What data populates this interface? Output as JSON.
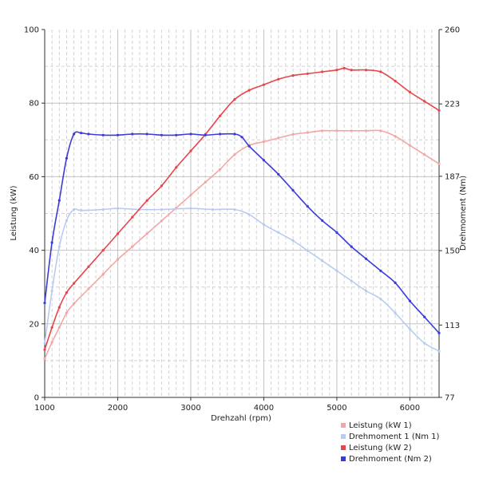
{
  "chart_data": {
    "type": "line",
    "xlabel": "Drehzahl (rpm)",
    "ylabel": "Leistung (kW)",
    "y2label": "Drehmoment (Nm)",
    "xlim": [
      1000,
      6400
    ],
    "ylim": [
      0,
      100
    ],
    "y2lim": [
      77,
      260
    ],
    "x_ticks": [
      1000,
      2000,
      3000,
      4000,
      5000,
      6000
    ],
    "x_tick_labels": [
      "1000",
      "2000",
      "3000",
      "4000",
      "5000",
      "6000"
    ],
    "y_ticks": [
      0,
      20,
      40,
      60,
      80,
      100
    ],
    "y_tick_labels": [
      "0",
      "20",
      "40",
      "60",
      "80",
      "100"
    ],
    "y2_ticks": [
      77,
      113,
      150,
      187,
      223,
      260
    ],
    "y2_tick_labels": [
      "77",
      "113",
      "150",
      "187",
      "223",
      "260"
    ],
    "grid": true,
    "legend_position": "bottom-right",
    "series": [
      {
        "name": "Leistung (kW 1)",
        "axis": "left",
        "color": "#f4a6a6",
        "x": [
          1000,
          1100,
          1200,
          1300,
          1400,
          1600,
          1800,
          2000,
          2200,
          2400,
          2600,
          2800,
          3000,
          3200,
          3400,
          3600,
          3800,
          4000,
          4200,
          4400,
          4600,
          4800,
          5000,
          5200,
          5400,
          5600,
          5800,
          6000,
          6200,
          6400
        ],
        "values": [
          10.5,
          15,
          19,
          23,
          25.5,
          29.5,
          33.5,
          37.5,
          41,
          44.5,
          48,
          51.5,
          55,
          58.5,
          62,
          66,
          68.5,
          69.5,
          70.5,
          71.5,
          72,
          72.5,
          72.5,
          72.5,
          72.5,
          72.5,
          71,
          68.5,
          66,
          63.5
        ]
      },
      {
        "name": "Drehmoment 1 (Nm 1)",
        "axis": "right",
        "color": "#b8ccf2",
        "x": [
          1000,
          1100,
          1200,
          1300,
          1400,
          1500,
          1800,
          2000,
          2300,
          2600,
          3000,
          3300,
          3600,
          3800,
          4000,
          4200,
          4400,
          4600,
          4800,
          5000,
          5200,
          5400,
          5600,
          5800,
          6000,
          6200,
          6400
        ],
        "values": [
          104,
          130,
          152,
          165,
          170.5,
          170,
          170.5,
          171,
          170.5,
          170.5,
          171,
          170.5,
          170.5,
          168,
          163,
          159,
          155,
          150,
          145,
          140,
          135,
          130,
          126,
          119,
          111,
          104,
          100
        ]
      },
      {
        "name": "Leistung (kW 2)",
        "axis": "left",
        "color": "#e8454b",
        "x": [
          1000,
          1100,
          1200,
          1300,
          1400,
          1600,
          1800,
          2000,
          2200,
          2400,
          2600,
          2800,
          3000,
          3200,
          3400,
          3600,
          3800,
          4000,
          4200,
          4400,
          4600,
          4800,
          5000,
          5100,
          5200,
          5400,
          5600,
          5800,
          6000,
          6200,
          6400
        ],
        "values": [
          13,
          19,
          24.5,
          28.5,
          31,
          35.5,
          40,
          44.5,
          49,
          53.5,
          57.5,
          62.5,
          67,
          71.5,
          76.5,
          81,
          83.5,
          85,
          86.5,
          87.5,
          88,
          88.5,
          89,
          89.5,
          89,
          89,
          88.5,
          86,
          83,
          80.5,
          78
        ]
      },
      {
        "name": "Drehmoment (Nm 2)",
        "axis": "right",
        "color": "#3a3bdb",
        "x": [
          1000,
          1100,
          1200,
          1300,
          1400,
          1500,
          1600,
          1800,
          2000,
          2200,
          2400,
          2600,
          2800,
          3000,
          3200,
          3400,
          3600,
          3700,
          3800,
          4000,
          4200,
          4400,
          4600,
          4800,
          5000,
          5200,
          5400,
          5600,
          5800,
          6000,
          6200,
          6400
        ],
        "values": [
          124,
          154,
          175,
          196,
          208,
          208.5,
          208,
          207.5,
          207.5,
          208,
          208,
          207.5,
          207.5,
          208,
          207.5,
          208,
          208,
          206.5,
          202,
          195,
          188,
          180,
          172,
          165,
          159,
          152,
          146,
          140,
          134,
          125,
          117,
          109
        ]
      }
    ]
  }
}
